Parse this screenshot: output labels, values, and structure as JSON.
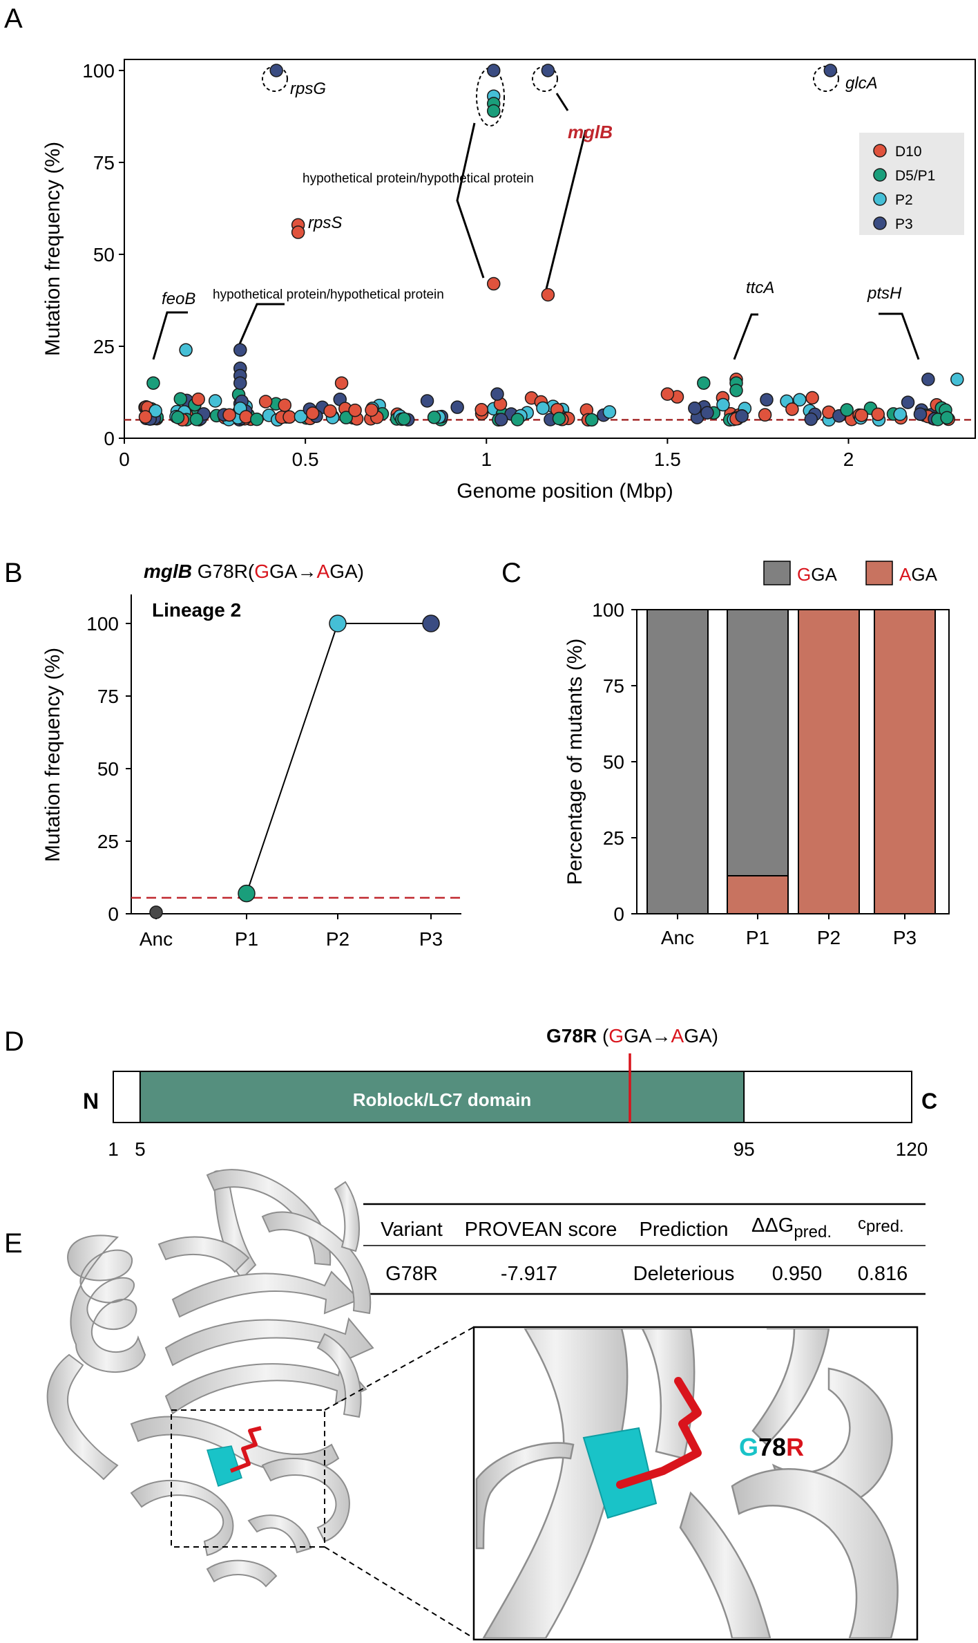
{
  "panels": {
    "a": "A",
    "b": "B",
    "c": "C",
    "d": "D",
    "e": "E"
  },
  "chart_data": [
    {
      "type": "scatter",
      "panel": "A",
      "xlabel": "Genome position (Mbp)",
      "ylabel": "Mutation frequency (%)",
      "xlim": [
        0,
        2.35
      ],
      "ylim": [
        0,
        103
      ],
      "xticks": [
        0,
        0.5,
        1,
        1.5,
        2
      ],
      "xtick_labels": [
        "0",
        "0.5",
        "1",
        "1.5",
        "2"
      ],
      "yticks": [
        0,
        25,
        50,
        75,
        100
      ],
      "threshold": 5,
      "legend": [
        {
          "key": "D10",
          "label": "D10",
          "color": "#e0533d"
        },
        {
          "key": "D5P1",
          "label": "D5/P1",
          "color": "#1a9e7b"
        },
        {
          "key": "P2",
          "label": "P2",
          "color": "#45bfd6"
        },
        {
          "key": "P3",
          "label": "P3",
          "color": "#3a4c82"
        }
      ],
      "highlights": [
        {
          "x": 0.42,
          "y": 100,
          "series": "P3"
        },
        {
          "x": 1.02,
          "y": 100,
          "series": "P3"
        },
        {
          "x": 1.02,
          "y": 93,
          "series": "P2"
        },
        {
          "x": 1.02,
          "y": 91,
          "series": "D5P1"
        },
        {
          "x": 1.02,
          "y": 89,
          "series": "D5P1"
        },
        {
          "x": 1.17,
          "y": 100,
          "series": "P3"
        },
        {
          "x": 1.95,
          "y": 100,
          "series": "P3"
        },
        {
          "x": 0.48,
          "y": 58,
          "series": "D10"
        },
        {
          "x": 0.48,
          "y": 56,
          "series": "D10"
        },
        {
          "x": 1.02,
          "y": 42,
          "series": "D10"
        },
        {
          "x": 1.17,
          "y": 39,
          "series": "D10"
        },
        {
          "x": 0.17,
          "y": 24,
          "series": "P2"
        },
        {
          "x": 0.32,
          "y": 24,
          "series": "P3"
        },
        {
          "x": 0.32,
          "y": 19,
          "series": "P3"
        },
        {
          "x": 0.32,
          "y": 17,
          "series": "P3"
        },
        {
          "x": 0.32,
          "y": 15,
          "series": "P3"
        },
        {
          "x": 0.08,
          "y": 15,
          "series": "D5P1"
        },
        {
          "x": 1.69,
          "y": 16,
          "series": "D10"
        },
        {
          "x": 1.69,
          "y": 15,
          "series": "D5P1"
        },
        {
          "x": 1.69,
          "y": 13,
          "series": "D5P1"
        },
        {
          "x": 2.22,
          "y": 16,
          "series": "P3"
        },
        {
          "x": 2.3,
          "y": 16,
          "series": "P2"
        },
        {
          "x": 1.6,
          "y": 15,
          "series": "D5P1"
        },
        {
          "x": 0.6,
          "y": 15,
          "series": "D10"
        },
        {
          "x": 1.5,
          "y": 12,
          "series": "D10"
        },
        {
          "x": 1.9,
          "y": 11,
          "series": "D10"
        },
        {
          "x": 1.03,
          "y": 12,
          "series": "P3"
        }
      ],
      "annotations": {
        "rpsG": "rpsG",
        "glcA": "glcA",
        "mglB": "mglB",
        "rpsS": "rpsS",
        "feoB": "feoB",
        "ttcA": "ttcA",
        "ptsH": "ptsH",
        "hyp1": "hypothetical protein/hypothetical protein",
        "hyp2": "hypothetical protein/hypothetical protein"
      }
    },
    {
      "type": "line",
      "panel": "B",
      "title_gene": "mglB",
      "title_pre": "G78R(",
      "title_g": "G",
      "title_mid": "GA→",
      "title_a": "A",
      "title_post": "GA)",
      "subtitle": "Lineage 2",
      "categories": [
        "Anc",
        "P1",
        "P2",
        "P3"
      ],
      "values": [
        0.5,
        7,
        100,
        100
      ],
      "colors": [
        "#4a4a4a",
        "#1a9e7b",
        "#45bfd6",
        "#3a4c82"
      ],
      "threshold": 5.5,
      "ylabel": "Mutation frequency (%)",
      "ylim": [
        0,
        110
      ],
      "yticks": [
        0,
        25,
        50,
        75,
        100
      ]
    },
    {
      "type": "bar",
      "panel": "C",
      "stacked": true,
      "categories": [
        "Anc",
        "P1",
        "P2",
        "P3"
      ],
      "series": [
        {
          "key": "AGA",
          "values": [
            0,
            12.5,
            100,
            100
          ],
          "color": "#c87360"
        },
        {
          "key": "GGA",
          "values": [
            100,
            87.5,
            0,
            0
          ],
          "color": "#808080"
        }
      ],
      "legend": [
        {
          "red": "G",
          "rest": "GA",
          "color": "#808080"
        },
        {
          "red": "A",
          "rest": "GA",
          "color": "#c87360"
        }
      ],
      "ylabel": "Percentage of mutants (%)",
      "ylim": [
        0,
        100
      ],
      "yticks": [
        0,
        25,
        50,
        75,
        100
      ]
    }
  ],
  "domain_map": {
    "mutation_bold": "G78R",
    "mutation_open": " (",
    "mutation_g": "G",
    "mutation_mid": "GA→",
    "mutation_a": "A",
    "mutation_close": "GA)",
    "n_label": "N",
    "c_label": "C",
    "domain_label": "Roblock/LC7 domain",
    "domain_color": "#558f7e",
    "positions": [
      "1",
      "5",
      "95",
      "120"
    ],
    "site": 78
  },
  "table": {
    "headers": [
      "Variant",
      "PROVEAN score",
      "Prediction"
    ],
    "ddg": "ΔΔG",
    "ddg_sub": "pred.",
    "c": "c",
    "c_sub": "pred.",
    "row": [
      "G78R",
      "-7.917",
      "Deleterious",
      "0.950",
      "0.816"
    ]
  },
  "structure": {
    "label_g": "G",
    "label_num": "78",
    "label_r": "R",
    "helix_color": "#e3e3e3",
    "cyan": "#19c3c8",
    "red": "#d9141c"
  }
}
